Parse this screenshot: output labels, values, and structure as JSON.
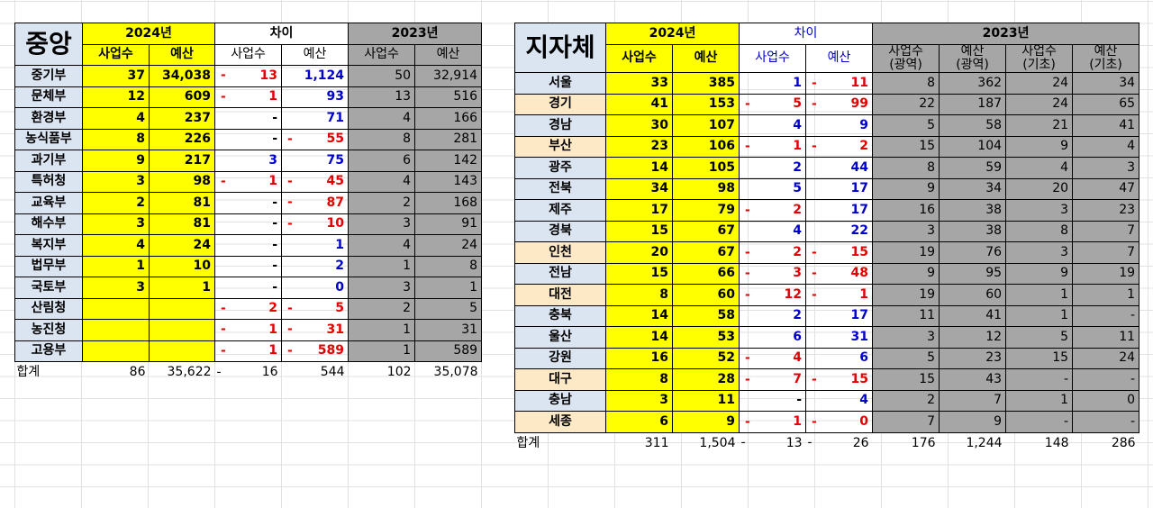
{
  "central": {
    "title": "중앙",
    "year_2024": "2024년",
    "diff": "차이",
    "year_2023": "2023년",
    "sub_headers": [
      "사업수",
      "예산",
      "사업수",
      "예산",
      "사업수",
      "예산"
    ],
    "rows": [
      {
        "name": "중기부",
        "c24": "37",
        "b24": "34,038",
        "dc_sign": "-",
        "dc": "13",
        "db_sign": "",
        "db": "1,124",
        "c23": "50",
        "b23": "32,914"
      },
      {
        "name": "문체부",
        "c24": "12",
        "b24": "609",
        "dc_sign": "-",
        "dc": "1",
        "db_sign": "",
        "db": "93",
        "c23": "13",
        "b23": "516"
      },
      {
        "name": "환경부",
        "c24": "4",
        "b24": "237",
        "dc_sign": "",
        "dc": "-",
        "db_sign": "",
        "db": "71",
        "c23": "4",
        "b23": "166"
      },
      {
        "name": "농식품부",
        "c24": "8",
        "b24": "226",
        "dc_sign": "",
        "dc": "-",
        "db_sign": "-",
        "db": "55",
        "c23": "8",
        "b23": "281"
      },
      {
        "name": "과기부",
        "c24": "9",
        "b24": "217",
        "dc_sign": "",
        "dc": "3",
        "db_sign": "",
        "db": "75",
        "c23": "6",
        "b23": "142"
      },
      {
        "name": "특허청",
        "c24": "3",
        "b24": "98",
        "dc_sign": "-",
        "dc": "1",
        "db_sign": "-",
        "db": "45",
        "c23": "4",
        "b23": "143"
      },
      {
        "name": "교육부",
        "c24": "2",
        "b24": "81",
        "dc_sign": "",
        "dc": "-",
        "db_sign": "-",
        "db": "87",
        "c23": "2",
        "b23": "168"
      },
      {
        "name": "해수부",
        "c24": "3",
        "b24": "81",
        "dc_sign": "",
        "dc": "-",
        "db_sign": "-",
        "db": "10",
        "c23": "3",
        "b23": "91"
      },
      {
        "name": "복지부",
        "c24": "4",
        "b24": "24",
        "dc_sign": "",
        "dc": "-",
        "db_sign": "",
        "db": "1",
        "c23": "4",
        "b23": "24"
      },
      {
        "name": "법무부",
        "c24": "1",
        "b24": "10",
        "dc_sign": "",
        "dc": "-",
        "db_sign": "",
        "db": "2",
        "c23": "1",
        "b23": "8"
      },
      {
        "name": "국토부",
        "c24": "3",
        "b24": "1",
        "dc_sign": "",
        "dc": "-",
        "db_sign": "",
        "db": "0",
        "c23": "3",
        "b23": "1"
      },
      {
        "name": "산림청",
        "c24": "",
        "b24": "",
        "dc_sign": "-",
        "dc": "2",
        "db_sign": "-",
        "db": "5",
        "c23": "2",
        "b23": "5"
      },
      {
        "name": "농진청",
        "c24": "",
        "b24": "",
        "dc_sign": "-",
        "dc": "1",
        "db_sign": "-",
        "db": "31",
        "c23": "1",
        "b23": "31"
      },
      {
        "name": "고용부",
        "c24": "",
        "b24": "",
        "dc_sign": "-",
        "dc": "1",
        "db_sign": "-",
        "db": "589",
        "c23": "1",
        "b23": "589"
      }
    ],
    "total": {
      "label": "합계",
      "c24": "86",
      "b24": "35,622",
      "dc_sign": "-",
      "dc": "16",
      "db": "544",
      "c23": "102",
      "b23": "35,078"
    }
  },
  "local": {
    "title": "지자체",
    "year_2024": "2024년",
    "diff": "차이",
    "year_2023": "2023년",
    "sub_headers": [
      "사업수",
      "예산",
      "사업수",
      "예산"
    ],
    "sub_headers_2023": [
      {
        "l1": "사업수",
        "l2": "(광역)"
      },
      {
        "l1": "예산",
        "l2": "(광역)"
      },
      {
        "l1": "사업수",
        "l2": "(기초)"
      },
      {
        "l1": "예산",
        "l2": "(기초)"
      }
    ],
    "rows": [
      {
        "name": "서울",
        "c24": "33",
        "b24": "385",
        "dc_sign": "",
        "dc": "1",
        "db_sign": "-",
        "db": "11",
        "c23a": "8",
        "b23a": "362",
        "c23b": "24",
        "b23b": "34"
      },
      {
        "name": "경기",
        "c24": "41",
        "b24": "153",
        "dc_sign": "-",
        "dc": "5",
        "db_sign": "-",
        "db": "99",
        "c23a": "22",
        "b23a": "187",
        "c23b": "24",
        "b23b": "65"
      },
      {
        "name": "경남",
        "c24": "30",
        "b24": "107",
        "dc_sign": "",
        "dc": "4",
        "db_sign": "",
        "db": "9",
        "c23a": "5",
        "b23a": "58",
        "c23b": "21",
        "b23b": "41"
      },
      {
        "name": "부산",
        "c24": "23",
        "b24": "106",
        "dc_sign": "-",
        "dc": "1",
        "db_sign": "-",
        "db": "2",
        "c23a": "15",
        "b23a": "104",
        "c23b": "9",
        "b23b": "4"
      },
      {
        "name": "광주",
        "c24": "14",
        "b24": "105",
        "dc_sign": "",
        "dc": "2",
        "db_sign": "",
        "db": "44",
        "c23a": "8",
        "b23a": "59",
        "c23b": "4",
        "b23b": "3"
      },
      {
        "name": "전북",
        "c24": "34",
        "b24": "98",
        "dc_sign": "",
        "dc": "5",
        "db_sign": "",
        "db": "17",
        "c23a": "9",
        "b23a": "34",
        "c23b": "20",
        "b23b": "47"
      },
      {
        "name": "제주",
        "c24": "17",
        "b24": "79",
        "dc_sign": "-",
        "dc": "2",
        "db_sign": "",
        "db": "17",
        "c23a": "16",
        "b23a": "38",
        "c23b": "3",
        "b23b": "23"
      },
      {
        "name": "경북",
        "c24": "15",
        "b24": "67",
        "dc_sign": "",
        "dc": "4",
        "db_sign": "",
        "db": "22",
        "c23a": "3",
        "b23a": "38",
        "c23b": "8",
        "b23b": "7"
      },
      {
        "name": "인천",
        "c24": "20",
        "b24": "67",
        "dc_sign": "-",
        "dc": "2",
        "db_sign": "-",
        "db": "15",
        "c23a": "19",
        "b23a": "76",
        "c23b": "3",
        "b23b": "7"
      },
      {
        "name": "전남",
        "c24": "15",
        "b24": "66",
        "dc_sign": "-",
        "dc": "3",
        "db_sign": "-",
        "db": "48",
        "c23a": "9",
        "b23a": "95",
        "c23b": "9",
        "b23b": "19"
      },
      {
        "name": "대전",
        "c24": "8",
        "b24": "60",
        "dc_sign": "-",
        "dc": "12",
        "db_sign": "-",
        "db": "1",
        "c23a": "19",
        "b23a": "60",
        "c23b": "1",
        "b23b": "1"
      },
      {
        "name": "충북",
        "c24": "14",
        "b24": "58",
        "dc_sign": "",
        "dc": "2",
        "db_sign": "",
        "db": "17",
        "c23a": "11",
        "b23a": "41",
        "c23b": "1",
        "b23b": "-"
      },
      {
        "name": "울산",
        "c24": "14",
        "b24": "53",
        "dc_sign": "",
        "dc": "6",
        "db_sign": "",
        "db": "31",
        "c23a": "3",
        "b23a": "12",
        "c23b": "5",
        "b23b": "11"
      },
      {
        "name": "강원",
        "c24": "16",
        "b24": "52",
        "dc_sign": "-",
        "dc": "4",
        "db_sign": "",
        "db": "6",
        "c23a": "5",
        "b23a": "23",
        "c23b": "15",
        "b23b": "24"
      },
      {
        "name": "대구",
        "c24": "8",
        "b24": "28",
        "dc_sign": "-",
        "dc": "7",
        "db_sign": "-",
        "db": "15",
        "c23a": "15",
        "b23a": "43",
        "c23b": "-",
        "b23b": "-"
      },
      {
        "name": "충남",
        "c24": "3",
        "b24": "11",
        "dc_sign": "",
        "dc": "-",
        "db_sign": "",
        "db": "4",
        "c23a": "2",
        "b23a": "7",
        "c23b": "1",
        "b23b": "0"
      },
      {
        "name": "세종",
        "c24": "6",
        "b24": "9",
        "dc_sign": "-",
        "dc": "1",
        "db_sign": "-",
        "db": "0",
        "c23a": "7",
        "b23a": "9",
        "c23b": "-",
        "b23b": "-"
      }
    ],
    "total": {
      "label": "합계",
      "c24": "311",
      "b24": "1,504",
      "dc_sign": "-",
      "dc": "13",
      "db_sign": "-",
      "db": "26",
      "c23a": "176",
      "b23a": "1,244",
      "c23b": "148",
      "b23b": "286"
    }
  },
  "colors": {
    "yellow": "#ffff00",
    "gray": "#a6a6a6",
    "light_blue": "#dbe4f1",
    "tan": "#fde9c5",
    "red": "#e00000",
    "blue": "#0000cc"
  }
}
